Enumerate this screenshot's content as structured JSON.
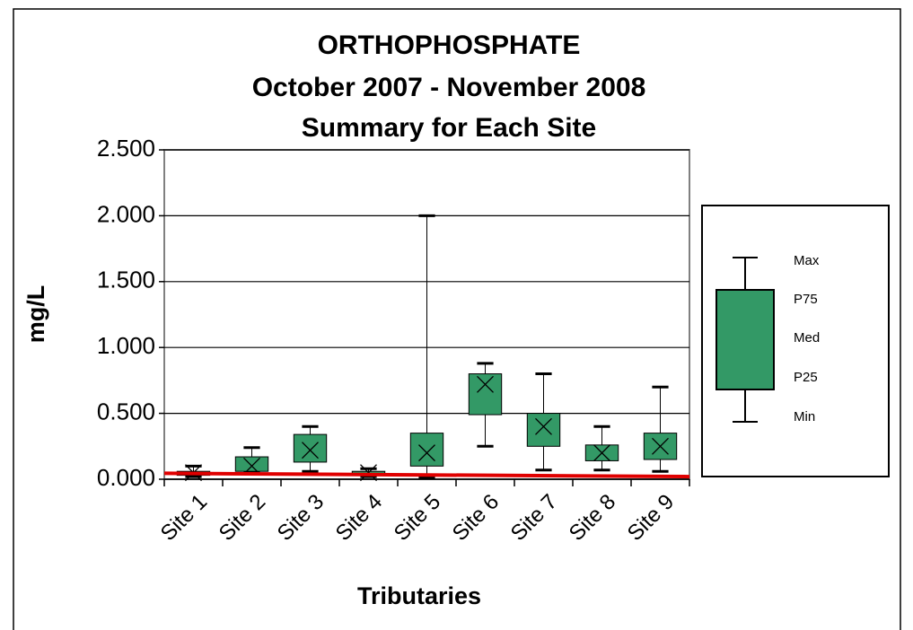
{
  "chart_data": {
    "type": "box",
    "title": [
      "ORTHOPHOSPHATE",
      "October 2007 -  November 2008",
      "Summary for Each Site"
    ],
    "y_label": "mg/L",
    "x_label": "Tributaries",
    "categories": [
      "Site 1",
      "Site 2",
      "Site 3",
      "Site 4",
      "Site 5",
      "Site 6",
      "Site 7",
      "Site 8",
      "Site 9"
    ],
    "color": "#339966",
    "series": [
      {
        "name": "Min",
        "values": [
          0.02,
          0.05,
          0.06,
          0.02,
          0.01,
          0.25,
          0.07,
          0.07,
          0.06
        ]
      },
      {
        "name": "P25",
        "values": [
          0.03,
          0.06,
          0.13,
          0.03,
          0.1,
          0.49,
          0.25,
          0.14,
          0.15
        ]
      },
      {
        "name": "Med",
        "values": [
          0.05,
          0.1,
          0.22,
          0.05,
          0.2,
          0.72,
          0.4,
          0.2,
          0.25
        ]
      },
      {
        "name": "P75",
        "values": [
          0.06,
          0.17,
          0.34,
          0.06,
          0.35,
          0.8,
          0.5,
          0.26,
          0.35
        ]
      },
      {
        "name": "Max",
        "values": [
          0.1,
          0.24,
          0.4,
          0.08,
          2.0,
          0.88,
          0.8,
          0.4,
          0.7
        ]
      }
    ],
    "reference_line": {
      "color": "#e00000",
      "values": [
        0.045,
        0.02
      ]
    },
    "ylim": [
      0,
      2.5
    ],
    "yticks": [
      {
        "value": 0,
        "label": "0.000"
      },
      {
        "value": 0.5,
        "label": "0.500"
      },
      {
        "value": 1,
        "label": "1.000"
      },
      {
        "value": 1.5,
        "label": "1.500"
      },
      {
        "value": 2,
        "label": "2.000"
      },
      {
        "value": 2.5,
        "label": "2.500"
      }
    ],
    "grid": true,
    "legend_labels": [
      "Max",
      "P75",
      "Med",
      "P25",
      "Min"
    ]
  }
}
